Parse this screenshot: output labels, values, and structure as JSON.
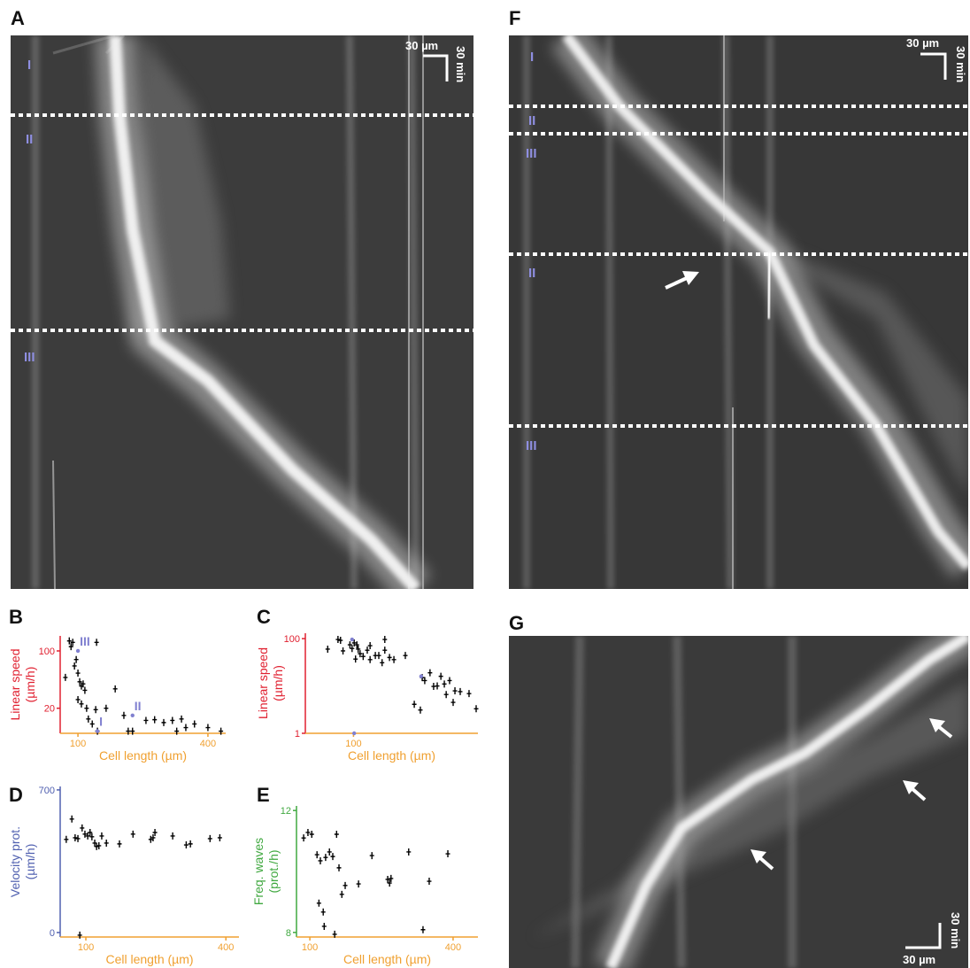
{
  "chart_data": [
    {
      "type": "scatter",
      "panel": "B",
      "ylabel": [
        "Linear speed",
        "(µm/h)"
      ],
      "xlabel": "Cell length (µm)",
      "ycolor": "#e02030",
      "xcolor": "#f0a030",
      "color": "#000000",
      "xlim": [
        59,
        441
      ],
      "ylim": [
        -15,
        121
      ],
      "xticks": [
        100,
        400
      ],
      "yticks": [
        20,
        100
      ],
      "x": [
        80,
        84,
        88,
        71,
        92,
        96,
        100,
        104,
        108,
        112,
        116,
        100,
        108,
        120,
        124,
        133,
        141,
        145,
        143,
        165,
        186,
        206,
        216,
        226,
        257,
        277,
        298,
        318,
        328,
        339,
        349,
        369,
        400,
        430
      ],
      "values": [
        114,
        106,
        112,
        63,
        79,
        88,
        69,
        57,
        51,
        54,
        45,
        32,
        26,
        20,
        5,
        -2,
        18,
        -12,
        112,
        20,
        47,
        10,
        -12,
        -12,
        3,
        4,
        0,
        3,
        -12,
        5,
        -7,
        -2,
        -7,
        -12
      ],
      "highlight_color": "#8080d0",
      "highlights": [
        {
          "label": "III",
          "x": 100,
          "y": 100
        },
        {
          "label": "I",
          "x": 145,
          "y": -12
        },
        {
          "label": "II",
          "x": 226,
          "y": 10
        }
      ]
    },
    {
      "type": "scatter",
      "panel": "C",
      "ylabel": [
        "Linear speed",
        "(µm/h)"
      ],
      "xlabel": "Cell length (µm)",
      "ycolor": "#e02030",
      "xcolor": "#f0a030",
      "color": "#000000",
      "xlog": true,
      "ylog": true,
      "xlim": [
        50,
        600
      ],
      "ylim": [
        1,
        130
      ],
      "xticks": [
        100
      ],
      "yticks": [
        1,
        100
      ],
      "x": [
        69,
        80,
        83,
        86,
        95,
        98,
        101,
        105,
        107,
        110,
        103,
        115,
        122,
        127,
        127,
        137,
        144,
        151,
        157,
        157,
        168,
        179,
        211,
        240,
        262,
        269,
        279,
        301,
        317,
        334,
        352,
        370,
        380,
        399,
        420,
        431,
        465,
        528,
        585
      ],
      "values": [
        60,
        96,
        92,
        55,
        74,
        62,
        81,
        74,
        60,
        48,
        37,
        42,
        57,
        71,
        36,
        44,
        44,
        31,
        96,
        57,
        40,
        36,
        44,
        4.1,
        3.1,
        15,
        13,
        19,
        9.8,
        10,
        16,
        11,
        6.6,
        13,
        4.5,
        7.9,
        7.6,
        6.9,
        3.3
      ],
      "highlight_color": "#8080d0",
      "highlights": [
        {
          "x": 98,
          "y": 96
        },
        {
          "x": 101,
          "y": 1
        },
        {
          "x": 265,
          "y": 16
        }
      ]
    },
    {
      "type": "scatter",
      "panel": "D",
      "ylabel": [
        "Velocity prot.",
        "(µm/h)"
      ],
      "xlabel": "Cell length (µm)",
      "ycolor": "#5060b0",
      "xcolor": "#f0a030",
      "color": "#000000",
      "xlim": [
        45,
        428
      ],
      "ylim": [
        -22,
        717
      ],
      "xticks": [
        100,
        400
      ],
      "yticks": [
        0,
        700
      ],
      "x": [
        58,
        70,
        77,
        83,
        92,
        98,
        104,
        109,
        113,
        119,
        123,
        128,
        134,
        144,
        172,
        201,
        239,
        244,
        248,
        286,
        315,
        324,
        366,
        387,
        87
      ],
      "values": [
        457,
        557,
        465,
        461,
        513,
        483,
        474,
        491,
        470,
        439,
        422,
        426,
        474,
        439,
        435,
        483,
        457,
        465,
        491,
        474,
        430,
        435,
        461,
        465,
        -13
      ]
    },
    {
      "type": "scatter",
      "panel": "E",
      "ylabel": [
        "Freq. waves",
        "(prot./h)"
      ],
      "xlabel": "Cell length (µm)",
      "ycolor": "#40a840",
      "xcolor": "#f0a030",
      "color": "#000000",
      "xlim": [
        72,
        452
      ],
      "ylim": [
        7.85,
        12.15
      ],
      "xticks": [
        100,
        400
      ],
      "yticks": [
        8,
        12
      ],
      "x": [
        87,
        96,
        104,
        115,
        122,
        119,
        130,
        133,
        141,
        148,
        152,
        156,
        161,
        167,
        174,
        202,
        230,
        263,
        267,
        270,
        307,
        337,
        350,
        389,
        128
      ],
      "values": [
        11.1,
        11.28,
        11.22,
        10.55,
        10.35,
        8.96,
        8.2,
        10.46,
        10.64,
        10.49,
        7.94,
        11.22,
        10.12,
        9.25,
        9.54,
        9.59,
        10.52,
        9.74,
        9.62,
        9.77,
        10.64,
        8.09,
        9.68,
        10.58,
        8.67
      ]
    }
  ],
  "kymographs": [
    {
      "panel": "A",
      "phases": [
        "I",
        "II",
        "III"
      ],
      "scale_x": "30 µm",
      "scale_y": "30 min"
    },
    {
      "panel": "F",
      "phases": [
        "I",
        "II",
        "III",
        "II",
        "III"
      ],
      "scale_x": "30 µm",
      "scale_y": "30 min"
    },
    {
      "panel": "G",
      "scale_x": "30 µm",
      "scale_y": "30 min"
    }
  ]
}
